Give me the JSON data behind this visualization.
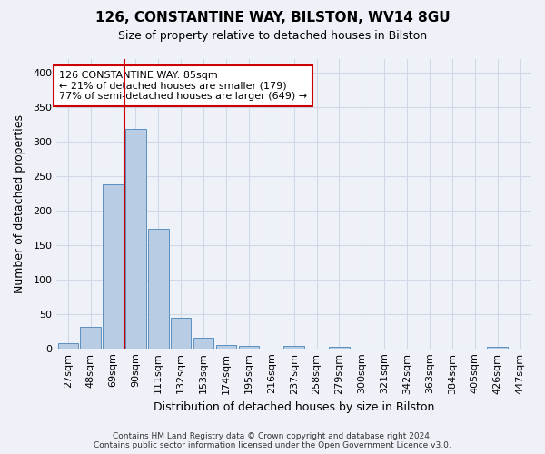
{
  "title_line1": "126, CONSTANTINE WAY, BILSTON, WV14 8GU",
  "title_line2": "Size of property relative to detached houses in Bilston",
  "xlabel": "Distribution of detached houses by size in Bilston",
  "ylabel": "Number of detached properties",
  "footer_line1": "Contains HM Land Registry data © Crown copyright and database right 2024.",
  "footer_line2": "Contains public sector information licensed under the Open Government Licence v3.0.",
  "bin_labels": [
    "27sqm",
    "48sqm",
    "69sqm",
    "90sqm",
    "111sqm",
    "132sqm",
    "153sqm",
    "174sqm",
    "195sqm",
    "216sqm",
    "237sqm",
    "258sqm",
    "279sqm",
    "300sqm",
    "321sqm",
    "342sqm",
    "363sqm",
    "384sqm",
    "405sqm",
    "426sqm",
    "447sqm"
  ],
  "bar_values": [
    7,
    31,
    238,
    318,
    174,
    44,
    15,
    5,
    4,
    0,
    3,
    0,
    2,
    0,
    0,
    0,
    0,
    0,
    0,
    2,
    0
  ],
  "bar_color": "#b8cce4",
  "bar_edge_color": "#5a8fc0",
  "grid_color": "#d0d8e8",
  "background_color": "#eef2f8",
  "vline_color": "#cc0000",
  "vline_pos": 2.5,
  "annotation_text": "126 CONSTANTINE WAY: 85sqm\n← 21% of detached houses are smaller (179)\n77% of semi-detached houses are larger (649) →",
  "annotation_box_color": "#ffffff",
  "annotation_box_edge": "#cc0000",
  "ylim": [
    0,
    420
  ],
  "yticks": [
    0,
    50,
    100,
    150,
    200,
    250,
    300,
    350,
    400
  ]
}
